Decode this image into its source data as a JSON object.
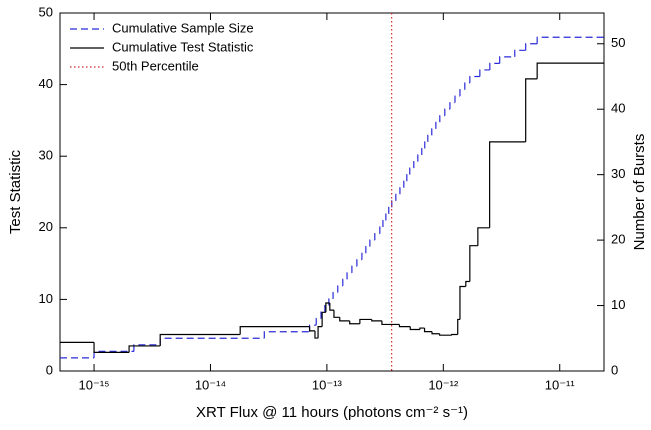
{
  "chart_data": {
    "type": "step",
    "xlabel": "XRT Flux @ 11 hours (photons cm⁻² s⁻¹)",
    "ylabel": "Test Statistic",
    "y2label": "Number of Bursts",
    "xscale": "log",
    "xlim": [
      5.1e-16,
      2.4e-11
    ],
    "xticks": [
      {
        "value": 1e-15,
        "label": "10⁻¹⁵"
      },
      {
        "value": 1e-14,
        "label": "10⁻¹⁴"
      },
      {
        "value": 1e-13,
        "label": "10⁻¹³"
      },
      {
        "value": 1e-12,
        "label": "10⁻¹²"
      },
      {
        "value": 1e-11,
        "label": "10⁻¹¹"
      }
    ],
    "ylim": [
      0,
      50
    ],
    "yticks": [
      0,
      10,
      20,
      30,
      40,
      50
    ],
    "y2lim": [
      0,
      54.7
    ],
    "y2ticks": [
      0,
      10,
      20,
      30,
      40,
      50
    ],
    "legend": "upper-left",
    "series": [
      {
        "name": "Cumulative Sample Size",
        "color": "#2b2bd9",
        "dash": "dashed",
        "axis": "y2",
        "x": [
          5.1e-16,
          1e-15,
          2.2e-15,
          3.7e-15,
          2.9e-14,
          7.1e-14,
          8.1e-14,
          8.9e-14,
          9.6e-14,
          1.04e-13,
          1.13e-13,
          1.24e-13,
          1.37e-13,
          1.49e-13,
          1.64e-13,
          1.81e-13,
          2e-13,
          2.16e-13,
          2.34e-13,
          2.58e-13,
          2.85e-13,
          3.03e-13,
          3.21e-13,
          3.4e-13,
          3.61e-13,
          3.91e-13,
          4.24e-13,
          4.58e-13,
          4.86e-13,
          5.15e-13,
          5.58e-13,
          6.04e-13,
          6.53e-13,
          6.93e-13,
          7.36e-13,
          7.96e-13,
          8.63e-13,
          9.33e-13,
          1.03e-12,
          1.14e-12,
          1.26e-12,
          1.39e-12,
          1.53e-12,
          1.69e-12,
          2.06e-12,
          2.51e-12,
          3.05e-12,
          4.11e-12,
          5.1e-12,
          6.4e-12
        ],
        "values": [
          2,
          3,
          4,
          5,
          6,
          7,
          8,
          9,
          10,
          11,
          12,
          13,
          14,
          15,
          16,
          17,
          18,
          19,
          20,
          21,
          22,
          23,
          24,
          25,
          26,
          27,
          28,
          29,
          30,
          31,
          32,
          33,
          34,
          35,
          36,
          37,
          38,
          39,
          40,
          41,
          42,
          43,
          44,
          45,
          46,
          47,
          48,
          49,
          50,
          51
        ]
      },
      {
        "name": "Cumulative Test Statistic",
        "color": "#000000",
        "dash": "solid",
        "axis": "y",
        "x": [
          5.1e-16,
          1e-15,
          2e-15,
          3.7e-15,
          1.8e-14,
          7.1e-14,
          7.9e-14,
          8.4e-14,
          9.1e-14,
          9.8e-14,
          1.06e-13,
          1.15e-13,
          1.29e-13,
          1.57e-13,
          1.92e-13,
          2.43e-13,
          2.97e-13,
          4.2e-13,
          5.2e-13,
          6.3e-13,
          6.9e-13,
          8e-13,
          9.3e-13,
          1.18e-12,
          1.33e-12,
          1.39e-12,
          1.56e-12,
          1.69e-12,
          1.98e-12,
          2.5e-12,
          5.1e-12,
          6.4e-12
        ],
        "values": [
          4.0,
          2.6,
          3.5,
          5.1,
          6.2,
          5.6,
          4.6,
          6.2,
          8.2,
          9.5,
          8.5,
          7.5,
          7.0,
          6.6,
          7.2,
          7.0,
          6.5,
          6.2,
          5.8,
          6.0,
          5.5,
          5.2,
          5.0,
          5.1,
          7.2,
          11.8,
          12.5,
          17.5,
          20,
          32,
          40.8,
          43
        ]
      }
    ],
    "vlines": [
      {
        "name": "50th Percentile",
        "x": 3.6e-13,
        "color": "#d62728",
        "dash": "dotted"
      }
    ]
  }
}
